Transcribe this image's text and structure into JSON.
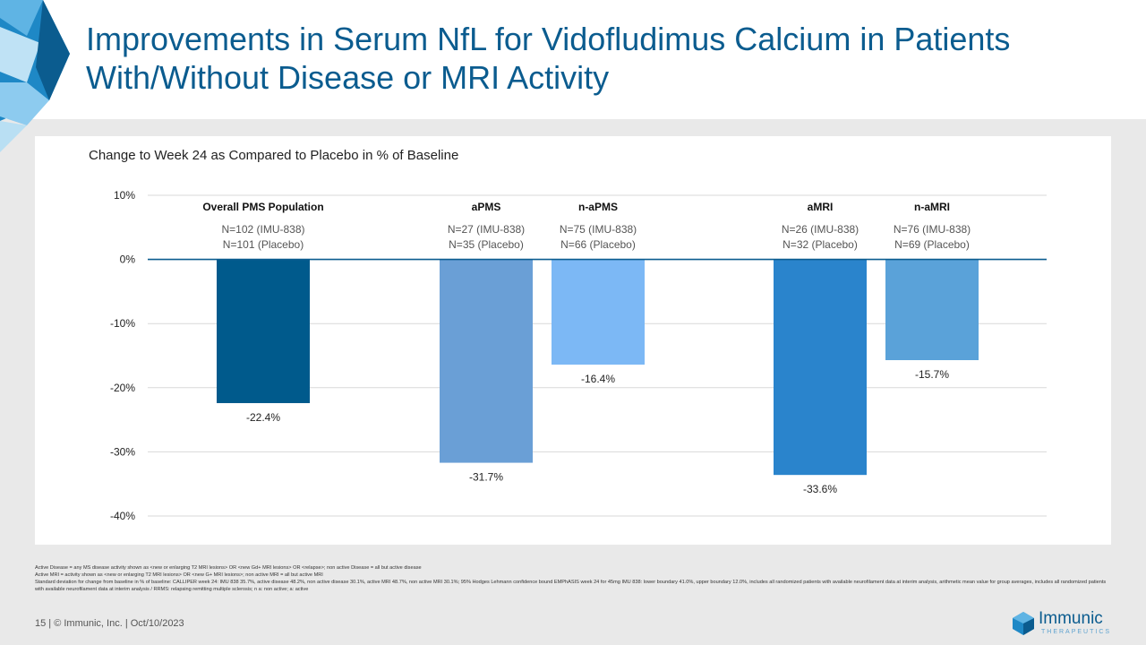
{
  "slide": {
    "title": "Improvements in Serum NfL for Vidofludimus Calcium in Patients With/Without Disease or MRI Activity",
    "footer": "15  |  © Immunic, Inc.  | Oct/10/2023",
    "logo_name": "Immunic",
    "logo_sub": "THERAPEUTICS",
    "footnotes": [
      "Active Disease = any MS disease activity shown as <new or enlarging T2 MRI lesions> OR <new Gd+ MRI lesions> OR <relapse>; non active Disease = all but active disease",
      "Active MRI = activity shown as <new or enlarging T2 MRI lesions> OR <new G+ MRI lesions>; non active MRI = all but active MRI",
      "Standard deviation for change from baseline in % of baseline: CALLIPER week 24: IMU 838 35.7%, active disease 48.2%, non active disease 30.1%, active MRI 48.7%, non active MRI 30.1%; 95% Hodges Lehmann confidence bound EMPhASIS week 24 for 45mg IMU 838: lower boundary  41.0%, upper boundary  12.0%, includes all randomized patients with available neurofilament data at interim analysis, arithmetic mean value for group averages, includes all randomized patients with available neurofilament data at interim analysis / RRMS: relapsing remitting multiple sclerosis; n a: non active; a: active"
    ]
  },
  "chart_data": {
    "type": "bar",
    "title": "Change to Week 24 as Compared to Placebo in % of Baseline",
    "ylim": [
      -40,
      10
    ],
    "yticks": [
      "10%",
      "0%",
      "-10%",
      "-20%",
      "-30%",
      "-40%"
    ],
    "grid": true,
    "bars": [
      {
        "group": "Overall PMS Population",
        "n1": "N=102 (IMU-838)",
        "n2": "N=101 (Placebo)",
        "value": -22.4,
        "label": "-22.4%",
        "color": "#005a8c"
      },
      {
        "group": "aPMS",
        "n1": "N=27 (IMU-838)",
        "n2": "N=35 (Placebo)",
        "value": -31.7,
        "label": "-31.7%",
        "color": "#6a9fd6"
      },
      {
        "group": "n-aPMS",
        "n1": "N=75 (IMU-838)",
        "n2": "N=66 (Placebo)",
        "value": -16.4,
        "label": "-16.4%",
        "color": "#7cb8f5"
      },
      {
        "group": "aMRI",
        "n1": "N=26 (IMU-838)",
        "n2": "N=32 (Placebo)",
        "value": -33.6,
        "label": "-33.6%",
        "color": "#2a84cc"
      },
      {
        "group": "n-aMRI",
        "n1": "N=76 (IMU-838)",
        "n2": "N=69 (Placebo)",
        "value": -15.7,
        "label": "-15.7%",
        "color": "#5aa2d9"
      }
    ]
  }
}
